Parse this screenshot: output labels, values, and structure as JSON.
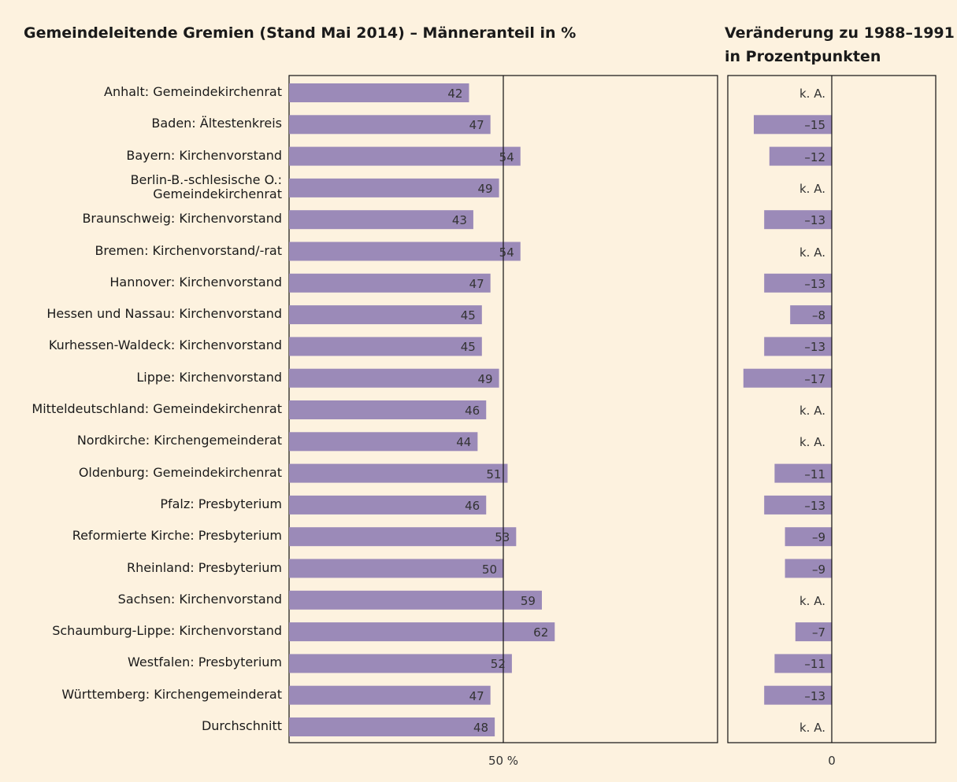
{
  "chart_data": [
    {
      "type": "hbar",
      "title": "Gemeindeleitende Gremien (Stand Mai 2014) – Männeranteil in %",
      "categories": [
        "Anhalt: Gemeindekirchenrat",
        "Baden: Ältestenkreis",
        "Bayern: Kirchenvorstand",
        "Berlin-B.-schlesische O.:\nGemeindekirchenrat",
        "Braunschweig: Kirchenvorstand",
        "Bremen: Kirchenvorstand/-rat",
        "Hannover: Kirchenvorstand",
        "Hessen und Nassau: Kirchenvorstand",
        "Kurhessen-Waldeck: Kirchenvorstand",
        "Lippe: Kirchenvorstand",
        "Mitteldeutschland: Gemeindekirchenrat",
        "Nordkirche: Kirchengemeinderat",
        "Oldenburg: Gemeindekirchenrat",
        "Pfalz: Presbyterium",
        "Reformierte Kirche: Presbyterium",
        "Rheinland: Presbyterium",
        "Sachsen: Kirchenvorstand",
        "Schaumburg-Lippe: Kirchenvorstand",
        "Westfalen: Presbyterium",
        "Württemberg: Kirchengemeinderat",
        "Durchschnitt"
      ],
      "values": [
        42,
        47,
        54,
        49,
        43,
        54,
        47,
        45,
        45,
        49,
        46,
        44,
        51,
        46,
        53,
        50,
        59,
        62,
        52,
        47,
        48
      ],
      "color": "#9b8ab8",
      "xlim": [
        0,
        100
      ],
      "xticks": [
        {
          "value": 50,
          "label": "50 %"
        }
      ],
      "grid": true
    },
    {
      "type": "hbar",
      "title": [
        "Veränderung zu 1988–1991",
        "in Prozentpunkten"
      ],
      "values": [
        null,
        -15,
        -12,
        null,
        -13,
        null,
        -13,
        -8,
        -13,
        -17,
        null,
        null,
        -11,
        -13,
        -9,
        -9,
        null,
        -7,
        -11,
        -13,
        null
      ],
      "value_labels": [
        "k. A.",
        "–15",
        "–12",
        "k. A.",
        "–13",
        "k. A.",
        "–13",
        "–8",
        "–13",
        "–17",
        "k. A.",
        "k. A.",
        "–11",
        "–13",
        "–9",
        "–9",
        "k. A.",
        "–7",
        "–11",
        "–13",
        "k. A."
      ],
      "color": "#9b8ab8",
      "xlim": [
        -20,
        20
      ],
      "xticks": [
        0
      ],
      "grid": true
    }
  ]
}
